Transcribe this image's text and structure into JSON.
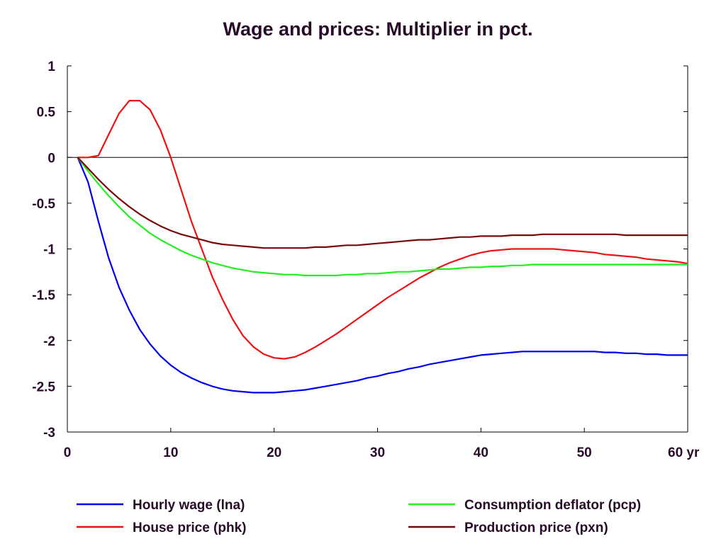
{
  "chart_data": {
    "type": "line",
    "title": "Wage and prices: Multiplier in pct.",
    "xlabel": "",
    "ylabel": "",
    "x_unit_label": "yr",
    "xlim": [
      0,
      60
    ],
    "ylim": [
      -3,
      1
    ],
    "x_ticks": [
      0,
      10,
      20,
      30,
      40,
      50,
      60
    ],
    "x_tick_labels": [
      "0",
      "10",
      "20",
      "30",
      "40",
      "50",
      "60 yr"
    ],
    "y_ticks": [
      1,
      0.5,
      0,
      -0.5,
      -1,
      -1.5,
      -2,
      -2.5,
      -3
    ],
    "y_tick_labels": [
      "1",
      "0.5",
      "0",
      "-0.5",
      "-1",
      "-1.5",
      "-2",
      "-2.5",
      "-3"
    ],
    "grid": false,
    "zero_line": true,
    "legend_position": "bottom",
    "x": [
      1,
      2,
      3,
      4,
      5,
      6,
      7,
      8,
      9,
      10,
      11,
      12,
      13,
      14,
      15,
      16,
      17,
      18,
      19,
      20,
      21,
      22,
      23,
      24,
      25,
      26,
      27,
      28,
      29,
      30,
      31,
      32,
      33,
      34,
      35,
      36,
      37,
      38,
      39,
      40,
      41,
      42,
      43,
      44,
      45,
      46,
      47,
      48,
      49,
      50,
      51,
      52,
      53,
      54,
      55,
      56,
      57,
      58,
      59,
      60
    ],
    "series": [
      {
        "name": "Hourly wage (lna)",
        "color": "#0000ee",
        "values": [
          0.0,
          -0.27,
          -0.7,
          -1.1,
          -1.42,
          -1.67,
          -1.88,
          -2.04,
          -2.17,
          -2.27,
          -2.35,
          -2.41,
          -2.46,
          -2.5,
          -2.53,
          -2.55,
          -2.56,
          -2.57,
          -2.57,
          -2.57,
          -2.56,
          -2.55,
          -2.54,
          -2.52,
          -2.5,
          -2.48,
          -2.46,
          -2.44,
          -2.41,
          -2.39,
          -2.36,
          -2.34,
          -2.31,
          -2.29,
          -2.26,
          -2.24,
          -2.22,
          -2.2,
          -2.18,
          -2.16,
          -2.15,
          -2.14,
          -2.13,
          -2.12,
          -2.12,
          -2.12,
          -2.12,
          -2.12,
          -2.12,
          -2.12,
          -2.12,
          -2.13,
          -2.13,
          -2.14,
          -2.14,
          -2.15,
          -2.15,
          -2.16,
          -2.16,
          -2.16
        ]
      },
      {
        "name": "House price (phk)",
        "color": "#ee1111",
        "values": [
          0.0,
          0.0,
          0.02,
          0.25,
          0.48,
          0.62,
          0.62,
          0.52,
          0.3,
          0.0,
          -0.35,
          -0.7,
          -1.0,
          -1.3,
          -1.55,
          -1.77,
          -1.95,
          -2.07,
          -2.15,
          -2.19,
          -2.2,
          -2.18,
          -2.13,
          -2.07,
          -2.0,
          -1.93,
          -1.85,
          -1.77,
          -1.69,
          -1.61,
          -1.53,
          -1.46,
          -1.39,
          -1.32,
          -1.26,
          -1.2,
          -1.15,
          -1.11,
          -1.07,
          -1.04,
          -1.02,
          -1.01,
          -1.0,
          -1.0,
          -1.0,
          -1.0,
          -1.0,
          -1.01,
          -1.02,
          -1.03,
          -1.04,
          -1.06,
          -1.07,
          -1.08,
          -1.09,
          -1.11,
          -1.12,
          -1.13,
          -1.14,
          -1.16
        ]
      },
      {
        "name": "Consumption deflator (pcp)",
        "color": "#22ee22",
        "values": [
          0.0,
          -0.15,
          -0.29,
          -0.42,
          -0.54,
          -0.65,
          -0.74,
          -0.83,
          -0.9,
          -0.96,
          -1.02,
          -1.07,
          -1.11,
          -1.15,
          -1.18,
          -1.21,
          -1.23,
          -1.25,
          -1.26,
          -1.27,
          -1.28,
          -1.28,
          -1.29,
          -1.29,
          -1.29,
          -1.29,
          -1.28,
          -1.28,
          -1.27,
          -1.27,
          -1.26,
          -1.25,
          -1.25,
          -1.24,
          -1.23,
          -1.22,
          -1.22,
          -1.21,
          -1.2,
          -1.2,
          -1.19,
          -1.19,
          -1.18,
          -1.18,
          -1.17,
          -1.17,
          -1.17,
          -1.17,
          -1.17,
          -1.17,
          -1.17,
          -1.17,
          -1.17,
          -1.17,
          -1.17,
          -1.17,
          -1.17,
          -1.17,
          -1.17,
          -1.17
        ]
      },
      {
        "name": "Production price (pxn)",
        "color": "#7a0a0a",
        "values": [
          0.0,
          -0.12,
          -0.24,
          -0.35,
          -0.45,
          -0.54,
          -0.62,
          -0.69,
          -0.75,
          -0.8,
          -0.84,
          -0.87,
          -0.9,
          -0.93,
          -0.95,
          -0.96,
          -0.97,
          -0.98,
          -0.99,
          -0.99,
          -0.99,
          -0.99,
          -0.99,
          -0.98,
          -0.98,
          -0.97,
          -0.96,
          -0.96,
          -0.95,
          -0.94,
          -0.93,
          -0.92,
          -0.91,
          -0.9,
          -0.9,
          -0.89,
          -0.88,
          -0.87,
          -0.87,
          -0.86,
          -0.86,
          -0.86,
          -0.85,
          -0.85,
          -0.85,
          -0.84,
          -0.84,
          -0.84,
          -0.84,
          -0.84,
          -0.84,
          -0.84,
          -0.84,
          -0.85,
          -0.85,
          -0.85,
          -0.85,
          -0.85,
          -0.85,
          -0.85
        ]
      }
    ]
  }
}
